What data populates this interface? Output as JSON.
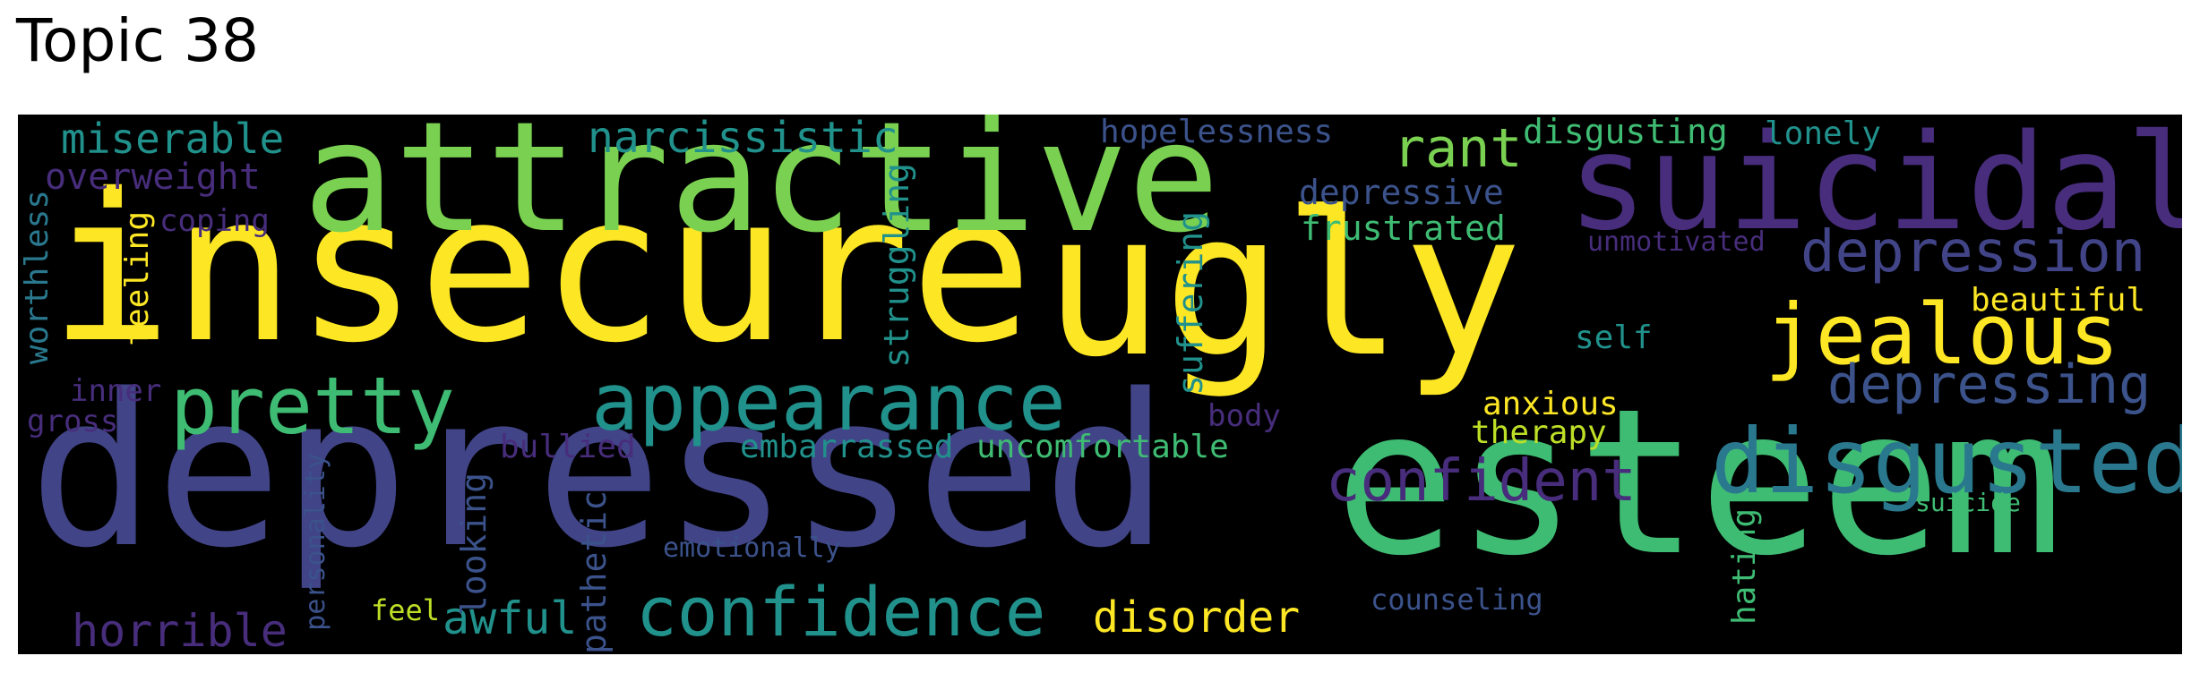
{
  "title": "Topic 38",
  "palette": {
    "yellow": "#fde725",
    "lime": "#7ad151",
    "green": "#3fbc73",
    "teal": "#21918c",
    "teal_blue": "#2a788e",
    "blue": "#3b528b",
    "indigo": "#414487",
    "purple": "#472d7b",
    "dark_purple": "#440154",
    "yellow_green": "#bddf26"
  },
  "words": {
    "insecure": "insecure",
    "ugly": "ugly",
    "depressed": "depressed",
    "esteem": "esteem",
    "attractive": "attractive",
    "suicidal": "suicidal",
    "jealous": "jealous",
    "disgusted": "disgusted",
    "pretty": "pretty",
    "appearance": "appearance",
    "confidence": "confidence",
    "confident": "confident",
    "depression": "depression",
    "depressing": "depressing",
    "rant": "rant",
    "miserable": "miserable",
    "narcissistic": "narcissistic",
    "overweight": "overweight",
    "hopelessness": "hopelessness",
    "disgusting": "disgusting",
    "lonely": "lonely",
    "depressive": "depressive",
    "frustrated": "frustrated",
    "unmotivated": "unmotivated",
    "beautiful": "beautiful",
    "self": "self",
    "anxious": "anxious",
    "therapy": "therapy",
    "coping": "coping",
    "worthless": "worthless",
    "feeling": "feeling",
    "struggling": "struggling",
    "suffering": "suffering",
    "inner": "inner",
    "gross": "gross",
    "body": "body",
    "bullied": "bullied",
    "embarrassed": "embarrassed",
    "uncomfortable": "uncomfortable",
    "suicide": "suicide",
    "personality": "personality",
    "looking": "looking",
    "pathetic": "pathetic",
    "emotionally": "emotionally",
    "hating": "hating",
    "counseling": "counseling",
    "horrible": "horrible",
    "feel": "feel",
    "awful": "awful",
    "disorder": "disorder"
  }
}
